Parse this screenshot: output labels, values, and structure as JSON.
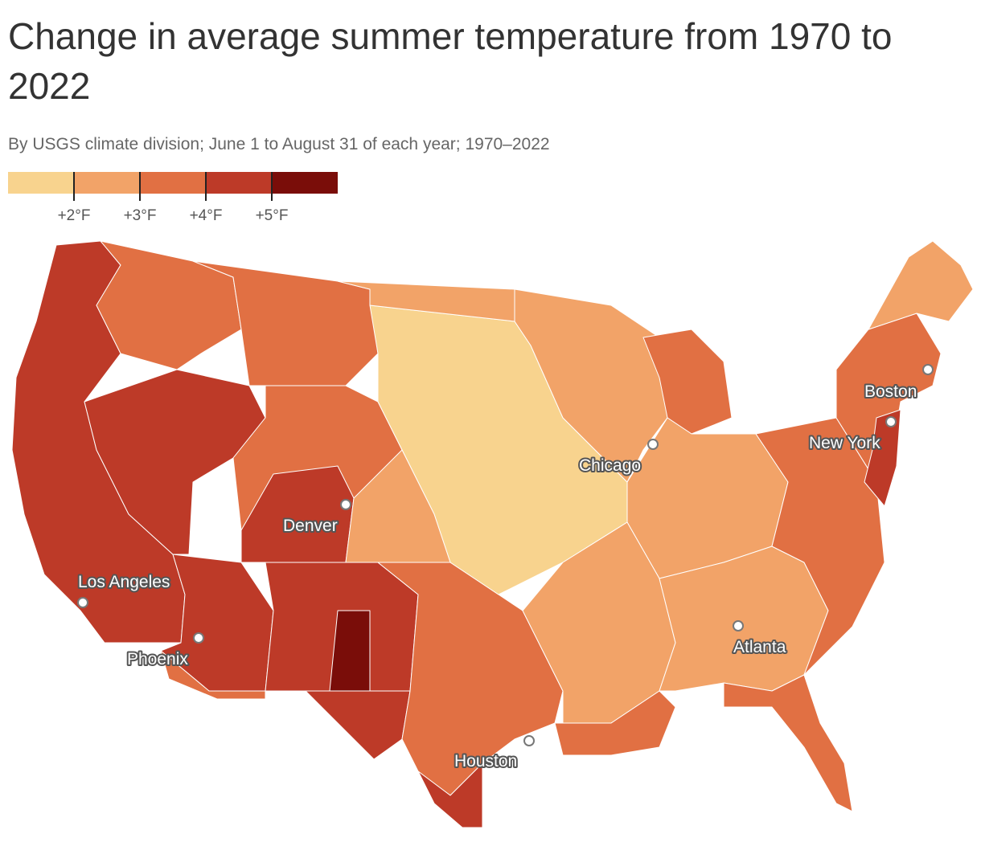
{
  "title": "Change in average summer temperature from 1970 to 2022",
  "subtitle": "By USGS climate division; June 1 to August 31 of each year; 1970–2022",
  "legend": {
    "colors": [
      "#f8d38e",
      "#f2a368",
      "#e17043",
      "#bd3a28",
      "#7a0d09"
    ],
    "ticks": [
      "+2°F",
      "+3°F",
      "+4°F",
      "+5°F"
    ]
  },
  "cities": [
    {
      "name": "Boston"
    },
    {
      "name": "New York"
    },
    {
      "name": "Chicago"
    },
    {
      "name": "Denver"
    },
    {
      "name": "Los Angeles"
    },
    {
      "name": "Phoenix"
    },
    {
      "name": "Atlanta"
    },
    {
      "name": "Houston"
    }
  ],
  "colors": {
    "border": "#ffffff",
    "city_marker_fill": "#ffffff",
    "city_marker_stroke": "#777777"
  }
}
